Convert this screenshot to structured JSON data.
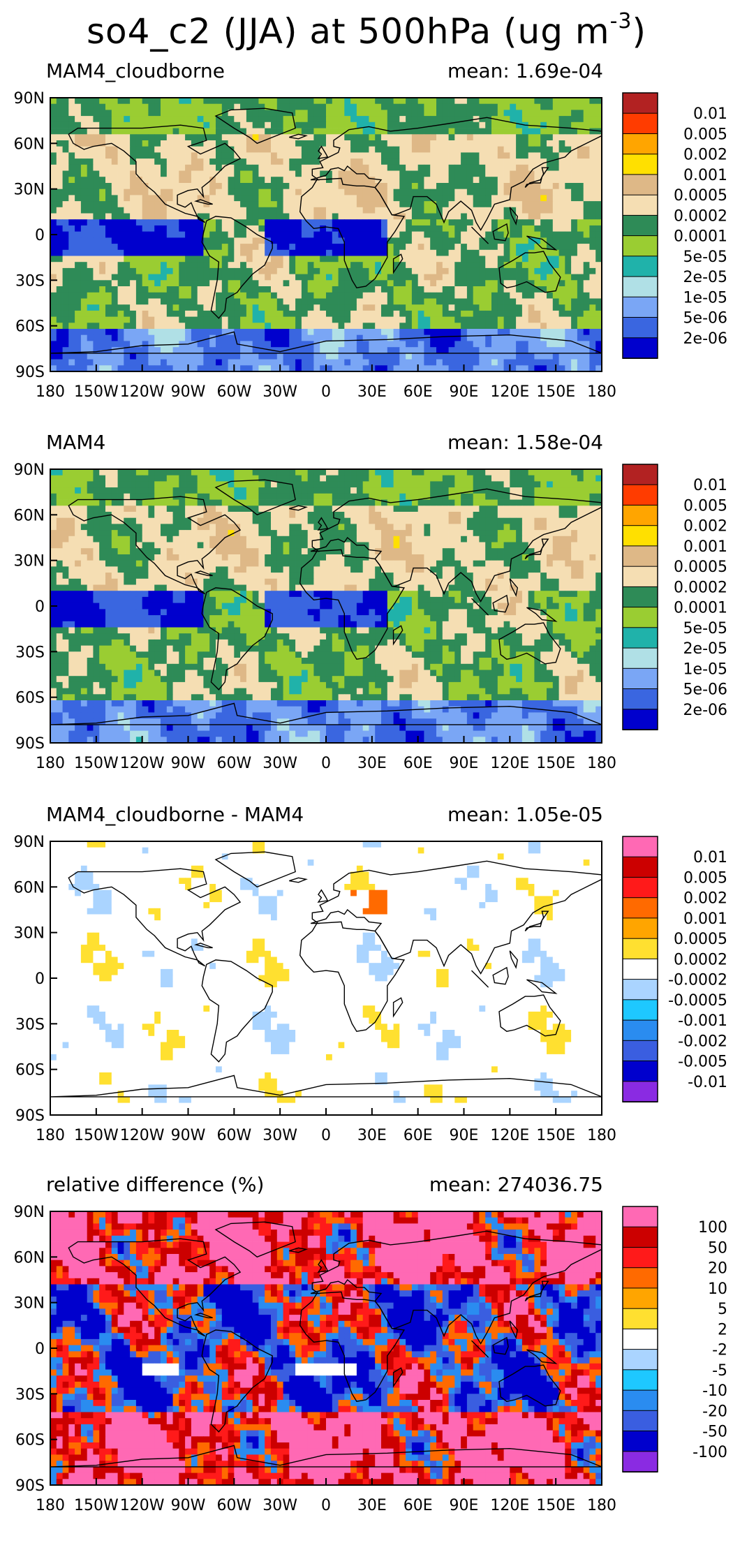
{
  "title": {
    "prefix": "so4_c2 (JJA) at 500hPa (ug m",
    "exp": "-3",
    "suffix": ")"
  },
  "axes": {
    "lat_labels": [
      "90N",
      "60N",
      "30N",
      "0",
      "30S",
      "60S",
      "90S"
    ],
    "lon_labels": [
      "180",
      "150W",
      "120W",
      "90W",
      "60W",
      "30W",
      "0",
      "30E",
      "60E",
      "90E",
      "120E",
      "150E",
      "180"
    ]
  },
  "panels": [
    {
      "title": "MAM4_cloudborne",
      "mean_label": "mean: 1.69e-04",
      "kind": "conc",
      "colorbar": {
        "labels": [
          "0.01",
          "0.005",
          "0.002",
          "0.001",
          "0.0005",
          "0.0002",
          "0.0001",
          "5e-05",
          "2e-05",
          "1e-05",
          "5e-06",
          "2e-06"
        ],
        "colors": [
          "#b22222",
          "#ff3c00",
          "#ffa500",
          "#ffe000",
          "#deb887",
          "#f5deb3",
          "#2e8b57",
          "#9acd32",
          "#20b2aa",
          "#b0e0e6",
          "#7aa6f5",
          "#3a66e0",
          "#0000cd"
        ]
      }
    },
    {
      "title": "MAM4",
      "mean_label": "mean: 1.58e-04",
      "kind": "conc",
      "colorbar": {
        "labels": [
          "0.01",
          "0.005",
          "0.002",
          "0.001",
          "0.0005",
          "0.0002",
          "0.0001",
          "5e-05",
          "2e-05",
          "1e-05",
          "5e-06",
          "2e-06"
        ],
        "colors": [
          "#b22222",
          "#ff3c00",
          "#ffa500",
          "#ffe000",
          "#deb887",
          "#f5deb3",
          "#2e8b57",
          "#9acd32",
          "#20b2aa",
          "#b0e0e6",
          "#7aa6f5",
          "#3a66e0",
          "#0000cd"
        ]
      }
    },
    {
      "title": "MAM4_cloudborne - MAM4",
      "mean_label": "mean: 1.05e-05",
      "kind": "diff",
      "colorbar": {
        "labels": [
          "0.01",
          "0.005",
          "0.002",
          "0.001",
          "0.0005",
          "0.0002",
          "-0.0002",
          "-0.0005",
          "-0.001",
          "-0.002",
          "-0.005",
          "-0.01"
        ],
        "colors": [
          "#ff69b4",
          "#cc0000",
          "#ff1a1a",
          "#ff6a00",
          "#ffa500",
          "#ffe030",
          "#ffffff",
          "#aad4ff",
          "#1ec8ff",
          "#2a8cf0",
          "#3a5ee0",
          "#0000cd",
          "#8a2be2"
        ]
      }
    },
    {
      "title": "relative difference (%)",
      "mean_label": "mean: 274036.75",
      "kind": "rel",
      "colorbar": {
        "labels": [
          "100",
          "50",
          "20",
          "10",
          "5",
          "2",
          "-2",
          "-5",
          "-10",
          "-20",
          "-50",
          "-100"
        ],
        "colors": [
          "#ff69b4",
          "#cc0000",
          "#ff1a1a",
          "#ff6a00",
          "#ffa500",
          "#ffe030",
          "#ffffff",
          "#aad4ff",
          "#1ec8ff",
          "#2a8cf0",
          "#3a5ee0",
          "#0000cd",
          "#8a2be2"
        ]
      }
    }
  ]
}
